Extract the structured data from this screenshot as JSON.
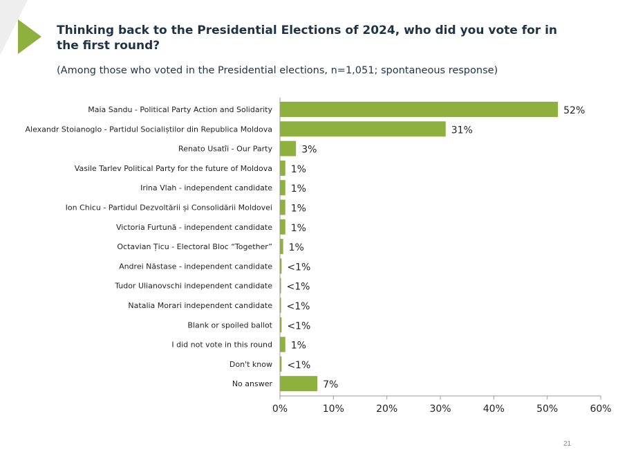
{
  "header": {
    "title": "Thinking back to the Presidential Elections of 2024, who did you vote for in the first round?",
    "subtitle": "(Among those who voted in the Presidential elections, n=1,051; spontaneous response)"
  },
  "page_number": "21",
  "colors": {
    "bar": "#8db03f",
    "accent": "#8db03f",
    "title": "#1f3347"
  },
  "chart_data": {
    "type": "bar",
    "orientation": "horizontal",
    "categories": [
      "Maia Sandu - Political Party Action and Solidarity",
      "Alexandr Stoianoglo - Partidul Socialiștilor din Republica Moldova",
      "Renato Usatîi - Our Party",
      "Vasile Tarlev Political Party for the future of Moldova",
      "Irina Vlah - independent candidate",
      "Ion Chicu - Partidul Dezvoltării și Consolidării Moldovei",
      "Victoria Furtună - independent candidate",
      "Octavian Țicu - Electoral Bloc “Together”",
      "Andrei Năstase - independent candidate",
      "Tudor Ulianovschi  independent candidate",
      "Natalia Morari  independent candidate",
      "Blank or spoiled ballot",
      "I did not vote in this round",
      "Don't know",
      "No answer"
    ],
    "values": [
      52,
      31,
      3,
      1,
      1,
      1,
      1,
      0.6,
      0.3,
      0.2,
      0.2,
      0.3,
      1,
      0.3,
      7
    ],
    "labels": [
      "52%",
      "31%",
      "3%",
      "1%",
      "1%",
      "1%",
      "1%",
      "1%",
      "<1%",
      "<1%",
      "<1%",
      "<1%",
      "1%",
      "<1%",
      "7%"
    ],
    "xlim": [
      0,
      60
    ],
    "xticks": [
      "0%",
      "10%",
      "20%",
      "30%",
      "40%",
      "50%",
      "60%"
    ],
    "grid": false
  }
}
